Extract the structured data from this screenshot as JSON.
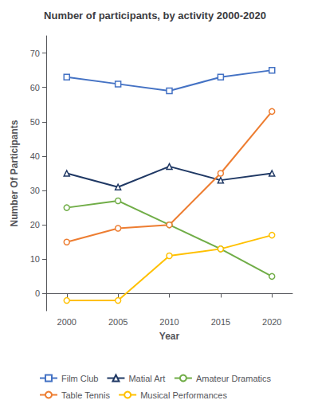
{
  "chart_data": {
    "type": "line",
    "title": "Number of participants, by activity 2000-2020",
    "xlabel": "Year",
    "ylabel": "Number Of Participants",
    "x": [
      2000,
      2005,
      2010,
      2015,
      2020
    ],
    "series": [
      {
        "name": "Film Club",
        "color": "#4472C4",
        "marker": "square",
        "values": [
          63,
          61,
          59,
          63,
          65
        ]
      },
      {
        "name": "Matial Art",
        "color": "#1F3864",
        "marker": "triangle",
        "values": [
          35,
          31,
          37,
          33,
          35
        ]
      },
      {
        "name": "Amateur Dramatics",
        "color": "#70AD47",
        "marker": "circle",
        "values": [
          25,
          27,
          20,
          13,
          5
        ]
      },
      {
        "name": "Table Tennis",
        "color": "#ED7D31",
        "marker": "circle",
        "values": [
          15,
          19,
          20,
          35,
          53
        ]
      },
      {
        "name": "Musical Performances",
        "color": "#FFC000",
        "marker": "circle",
        "values": [
          -2,
          -2,
          11,
          13,
          17
        ]
      }
    ],
    "xlim": [
      1998,
      2022
    ],
    "xticks": [
      2000,
      2005,
      2010,
      2015,
      2020
    ],
    "ylim": [
      -5,
      75
    ],
    "yticks": [
      0,
      10,
      20,
      30,
      40,
      50,
      60,
      70
    ],
    "grid": false,
    "legend": "bottom"
  }
}
